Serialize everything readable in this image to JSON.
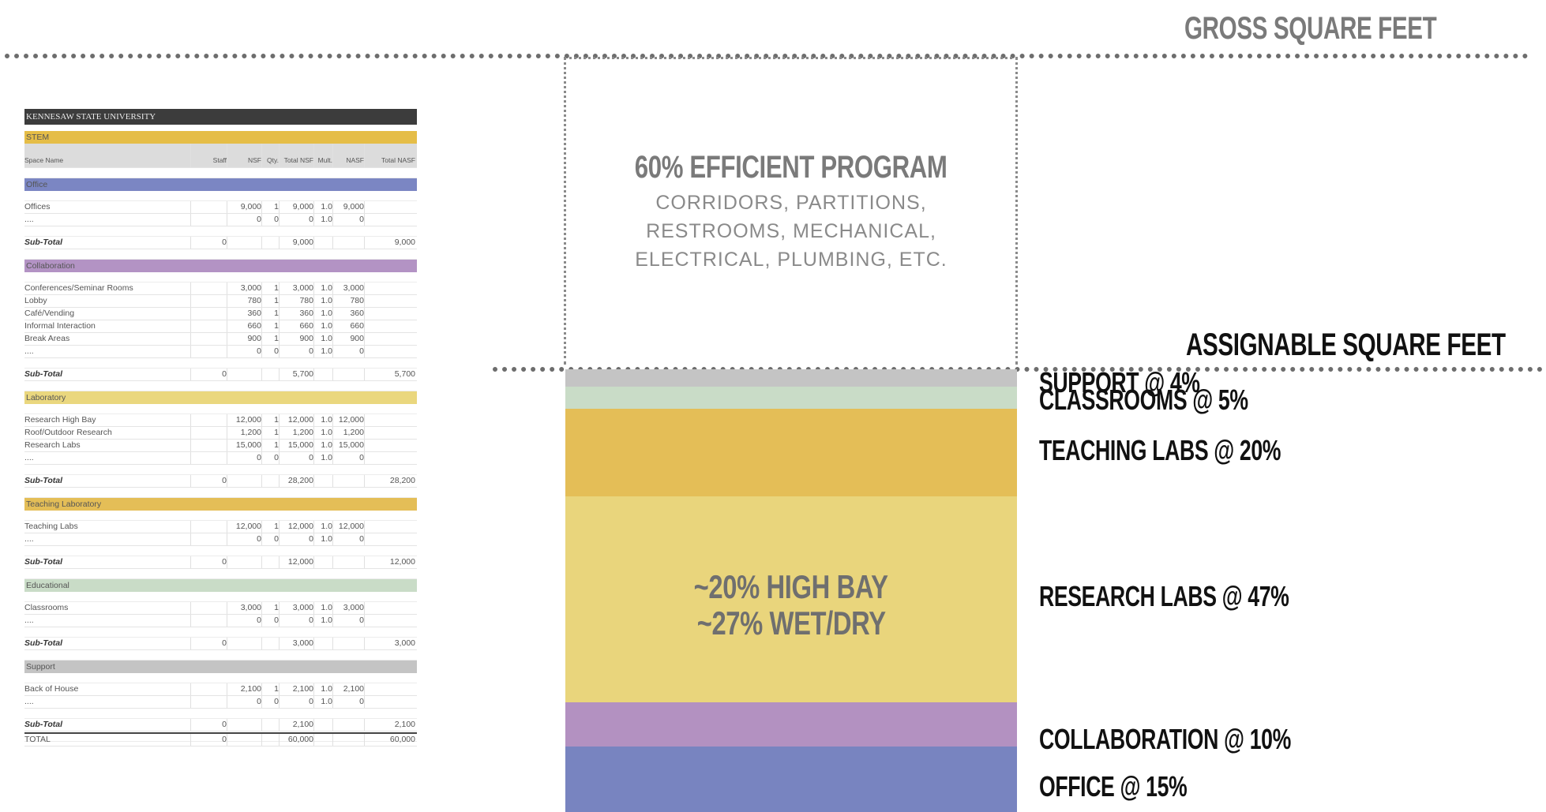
{
  "header": {
    "gross_label": "GROSS SQUARE FEET",
    "assignable_label": "ASSIGNABLE SQUARE FEET"
  },
  "efficiency_box": {
    "title": "60% EFFICIENT PROGRAM",
    "line1": "CORRIDORS, PARTITIONS,",
    "line2": "RESTROOMS, MECHANICAL,",
    "line3": "ELECTRICAL, PLUMBING, ETC."
  },
  "stack": {
    "segments": [
      {
        "name": "support",
        "label": "SUPPORT @ 4%",
        "percent": 4,
        "color": "#c4c4c4"
      },
      {
        "name": "classrooms",
        "label": "CLASSROOMS @ 5%",
        "percent": 5,
        "color": "#c9dcc7"
      },
      {
        "name": "teaching-labs",
        "label": "TEACHING LABS @ 20%",
        "percent": 20,
        "color": "#e4be57"
      },
      {
        "name": "research-labs",
        "label": "RESEARCH LABS @ 47%",
        "percent": 47,
        "color": "#e9d57c"
      },
      {
        "name": "collaboration",
        "label": "COLLABORATION @ 10%",
        "percent": 10,
        "color": "#b391c1"
      },
      {
        "name": "office",
        "label": "OFFICE @ 15%",
        "percent": 15,
        "color": "#7884c0"
      }
    ],
    "research_note_1": "~20% HIGH BAY",
    "research_note_2": "~27% WET/DRY"
  },
  "sheet": {
    "title": "KENNESAW STATE UNIVERSITY",
    "banner": "STEM",
    "headers": [
      "Space Name",
      "Staff",
      "NSF",
      "Qty.",
      "Total NSF",
      "Mult.",
      "NASF",
      "Total NASF"
    ],
    "sections": [
      {
        "name": "Office",
        "color": "#7b86c3",
        "rows": [
          [
            "Offices",
            "",
            "9,000",
            "1",
            "9,000",
            "1.0",
            "9,000",
            ""
          ],
          [
            "....",
            "",
            "0",
            "0",
            "0",
            "1.0",
            "0",
            ""
          ]
        ],
        "subtotal": [
          "Sub-Total",
          "0",
          "",
          "",
          "9,000",
          "",
          "",
          "9,000"
        ]
      },
      {
        "name": "Collaboration",
        "color": "#b393c4",
        "rows": [
          [
            "Conferences/Seminar Rooms",
            "",
            "3,000",
            "1",
            "3,000",
            "1.0",
            "3,000",
            ""
          ],
          [
            "Lobby",
            "",
            "780",
            "1",
            "780",
            "1.0",
            "780",
            ""
          ],
          [
            "Café/Vending",
            "",
            "360",
            "1",
            "360",
            "1.0",
            "360",
            ""
          ],
          [
            "Informal Interaction",
            "",
            "660",
            "1",
            "660",
            "1.0",
            "660",
            ""
          ],
          [
            "Break Areas",
            "",
            "900",
            "1",
            "900",
            "1.0",
            "900",
            ""
          ],
          [
            "....",
            "",
            "0",
            "0",
            "0",
            "1.0",
            "0",
            ""
          ]
        ],
        "subtotal": [
          "Sub-Total",
          "0",
          "",
          "",
          "5,700",
          "",
          "",
          "5,700"
        ]
      },
      {
        "name": "Laboratory",
        "color": "#ead77e",
        "rows": [
          [
            "Research High Bay",
            "",
            "12,000",
            "1",
            "12,000",
            "1.0",
            "12,000",
            ""
          ],
          [
            "Roof/Outdoor Research",
            "",
            "1,200",
            "1",
            "1,200",
            "1.0",
            "1,200",
            ""
          ],
          [
            "Research Labs",
            "",
            "15,000",
            "1",
            "15,000",
            "1.0",
            "15,000",
            ""
          ],
          [
            "....",
            "",
            "0",
            "0",
            "0",
            "1.0",
            "0",
            ""
          ]
        ],
        "subtotal": [
          "Sub-Total",
          "0",
          "",
          "",
          "28,200",
          "",
          "",
          "28,200"
        ]
      },
      {
        "name": "Teaching Laboratory",
        "color": "#e4be57",
        "rows": [
          [
            "Teaching Labs",
            "",
            "12,000",
            "1",
            "12,000",
            "1.0",
            "12,000",
            ""
          ],
          [
            "....",
            "",
            "0",
            "0",
            "0",
            "1.0",
            "0",
            ""
          ]
        ],
        "subtotal": [
          "Sub-Total",
          "0",
          "",
          "",
          "12,000",
          "",
          "",
          "12,000"
        ]
      },
      {
        "name": "Educational",
        "color": "#c9dcc7",
        "rows": [
          [
            "Classrooms",
            "",
            "3,000",
            "1",
            "3,000",
            "1.0",
            "3,000",
            ""
          ],
          [
            "....",
            "",
            "0",
            "0",
            "0",
            "1.0",
            "0",
            ""
          ]
        ],
        "subtotal": [
          "Sub-Total",
          "0",
          "",
          "",
          "3,000",
          "",
          "",
          "3,000"
        ]
      },
      {
        "name": "Support",
        "color": "#c4c4c4",
        "rows": [
          [
            "Back of House",
            "",
            "2,100",
            "1",
            "2,100",
            "1.0",
            "2,100",
            ""
          ],
          [
            "....",
            "",
            "0",
            "0",
            "0",
            "1.0",
            "0",
            ""
          ]
        ],
        "subtotal": [
          "Sub-Total",
          "0",
          "",
          "",
          "2,100",
          "",
          "",
          "2,100"
        ]
      }
    ],
    "total": [
      "TOTAL",
      "0",
      "",
      "",
      "60,000",
      "",
      "",
      "60,000"
    ]
  }
}
